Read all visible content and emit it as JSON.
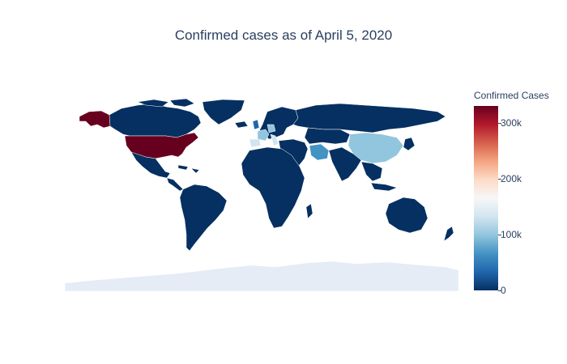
{
  "title": "Confirmed cases as of April 5, 2020",
  "colorbar": {
    "title": "Confirmed Cases",
    "ticks": [
      {
        "label": "300k",
        "value": 300000
      },
      {
        "label": "200k",
        "value": 200000
      },
      {
        "label": "100k",
        "value": 100000
      },
      {
        "label": "0",
        "value": 0
      }
    ],
    "range": [
      0,
      331000
    ],
    "colorscale": [
      "#053061",
      "#2166ac",
      "#4393c3",
      "#92c5de",
      "#d1e5f0",
      "#f7f7f7",
      "#fddbc7",
      "#f4a582",
      "#d6604d",
      "#b2182b",
      "#67001f"
    ]
  },
  "map": {
    "projection": "equirectangular",
    "no_data_color": "#e5ecf6",
    "regions": [
      {
        "name": "United States",
        "cases": 331000
      },
      {
        "name": "Spain",
        "cases": 131000
      },
      {
        "name": "Italy",
        "cases": 128000
      },
      {
        "name": "Germany",
        "cases": 100000
      },
      {
        "name": "France",
        "cases": 93000
      },
      {
        "name": "China",
        "cases": 82600
      },
      {
        "name": "Iran",
        "cases": 58000
      }
    ]
  }
}
